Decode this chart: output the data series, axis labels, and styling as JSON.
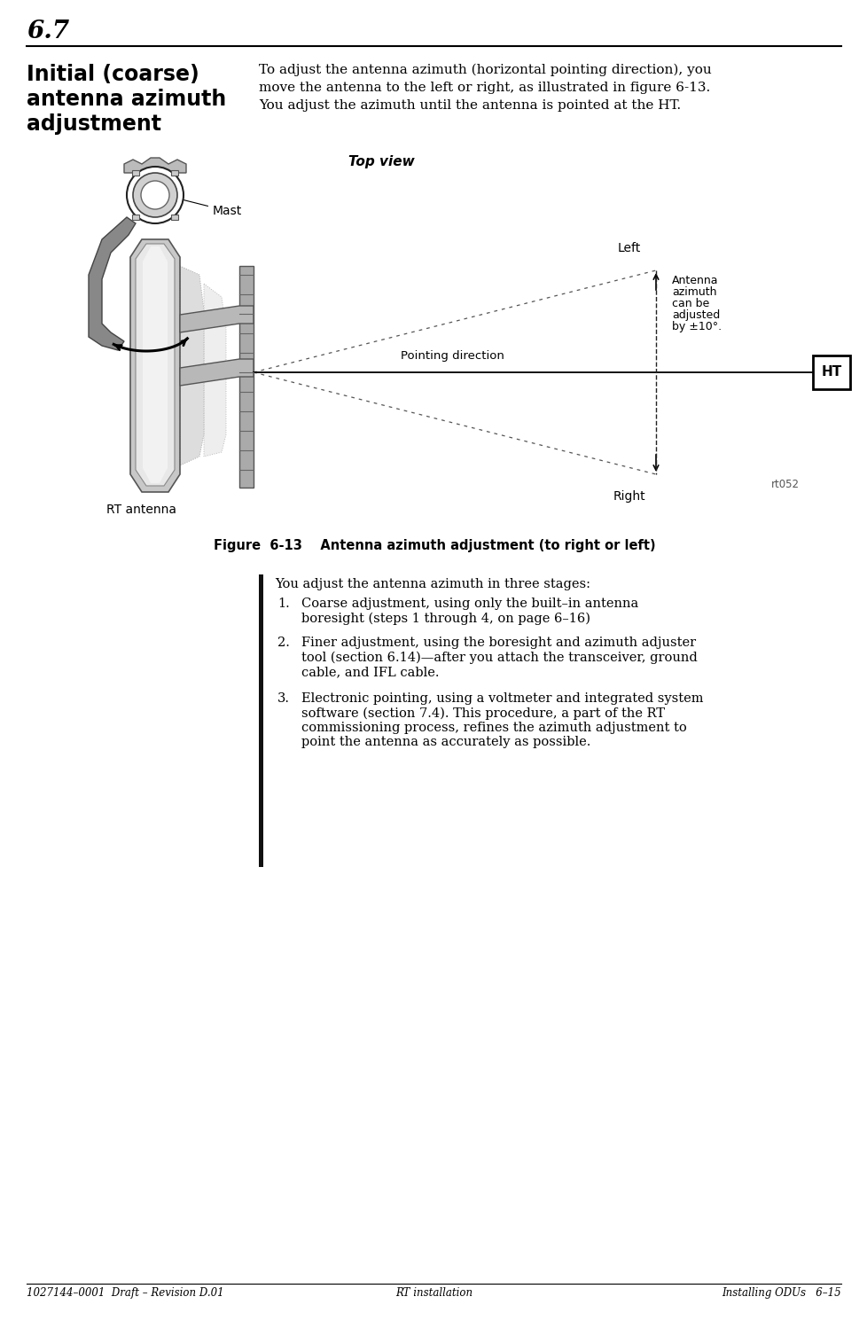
{
  "page_number": "6.7",
  "section_title_line1": "Initial (coarse)",
  "section_title_line2": "antenna azimuth",
  "section_title_line3": "adjustment",
  "intro_text_line1": "To adjust the antenna azimuth (horizontal pointing direction), you",
  "intro_text_line2": "move the antenna to the left or right, as illustrated in figure 6-13.",
  "intro_text_line3": "You adjust the azimuth until the antenna is pointed at the HT.",
  "figure_title": "Figure  6-13    Antenna azimuth adjustment (to right or left)",
  "top_view_label": "Top view",
  "mast_label": "Mast",
  "rt_antenna_label": "RT antenna",
  "pointing_direction_label": "Pointing direction",
  "left_label": "Left",
  "right_label": "Right",
  "ht_label": "HT",
  "antenna_azimuth_line1": "Antenna",
  "antenna_azimuth_line2": "azimuth",
  "antenna_azimuth_line3": "can be",
  "antenna_azimuth_line4": "adjusted",
  "antenna_azimuth_line5": "by ±10°.",
  "rt052_label": "rt052",
  "list_intro": "You adjust the antenna azimuth in three stages:",
  "list_item1_num": "1.",
  "list_item1": "Coarse adjustment, using only the built–in antenna\nboresight (steps 1 through 4, on page 6–16)",
  "list_item2_num": "2.",
  "list_item2": "Finer adjustment, using the boresight and azimuth adjuster\ntool (section 6.14)—after you attach the transceiver, ground\ncable, and IFL cable.",
  "list_item3_num": "3.",
  "list_item3": "Electronic pointing, using a voltmeter and integrated system\nsoftware (section 7.4). This procedure, a part of the RT\ncommissioning process, refines the azimuth adjustment to\npoint the antenna as accurately as possible.",
  "footer_left": "1027144–0001  Draft – Revision D.01",
  "footer_center": "RT installation",
  "footer_right": "Installing ODUs   6–15",
  "bg_color": "#ffffff",
  "text_color": "#000000"
}
